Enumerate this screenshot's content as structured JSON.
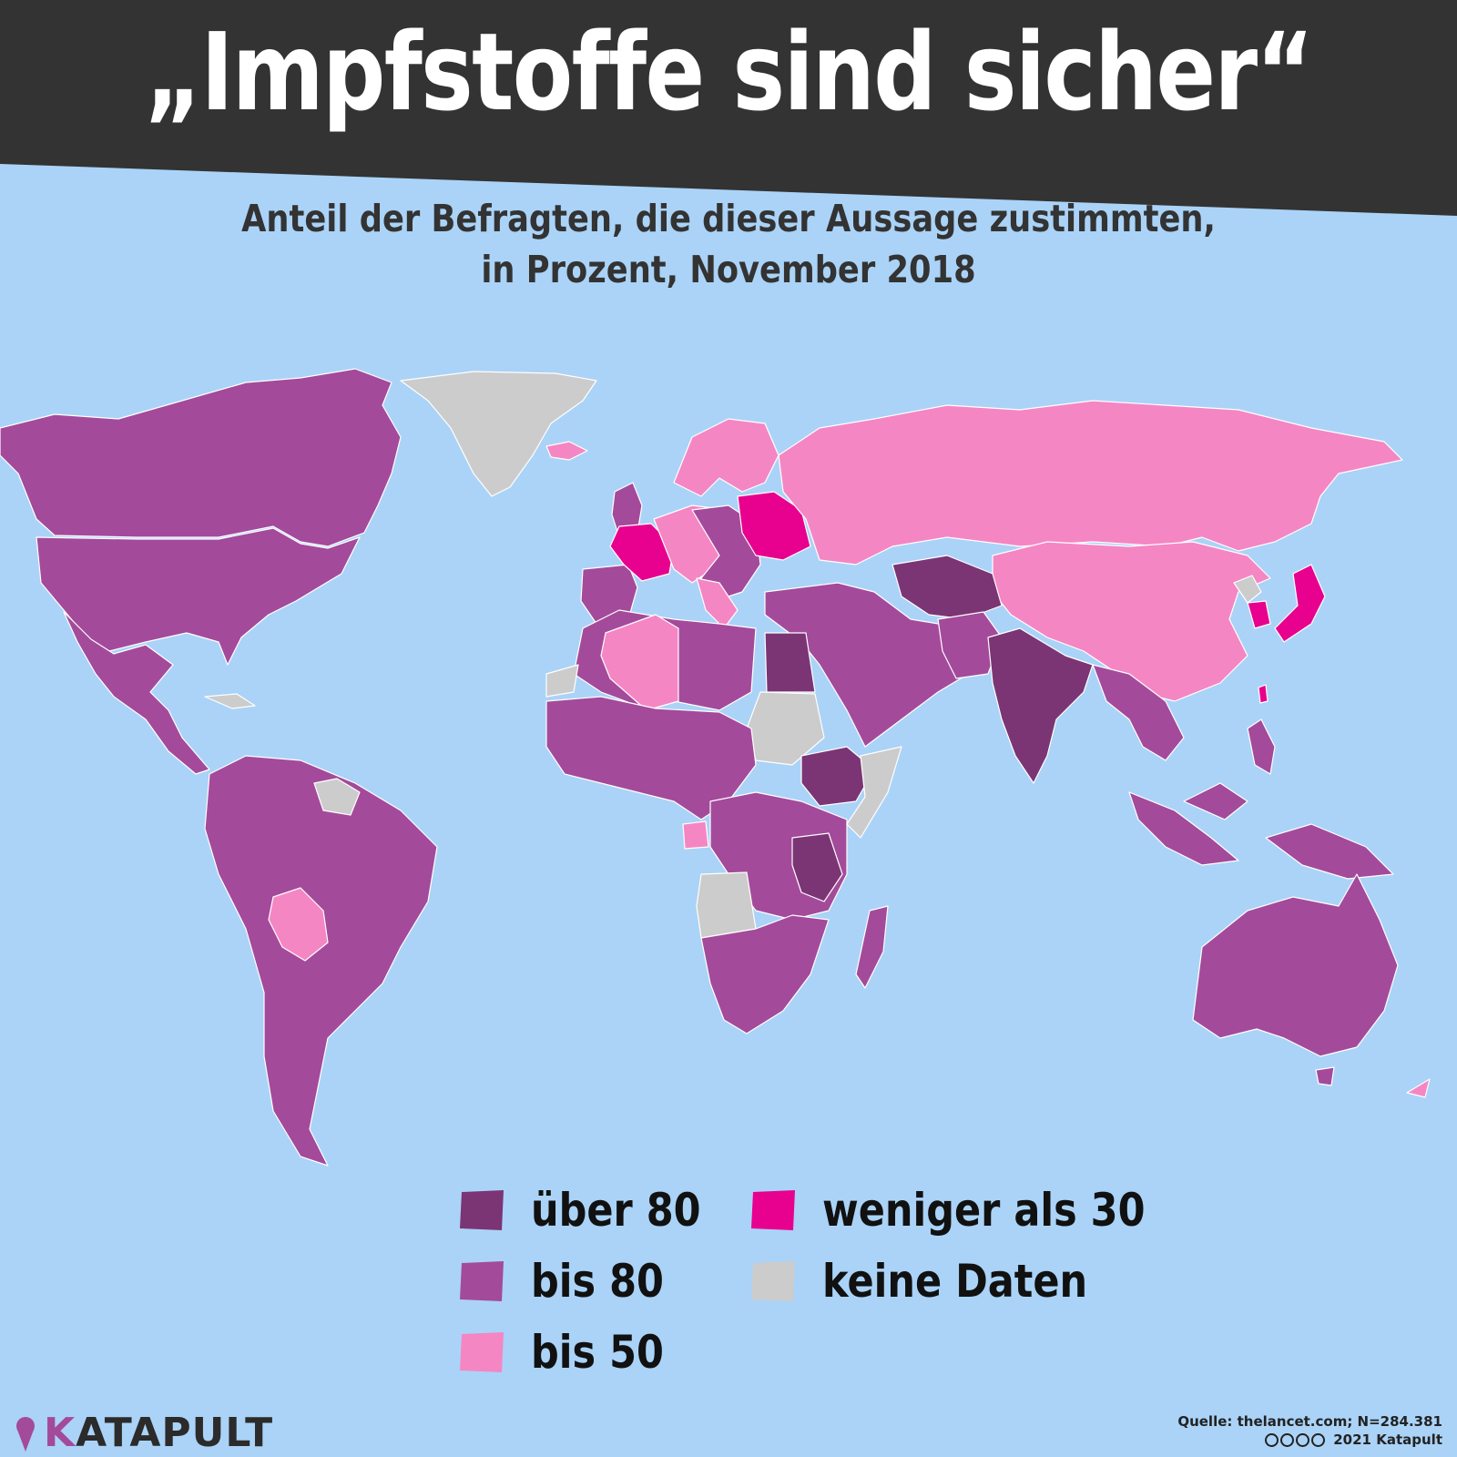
{
  "header": {
    "title": "„Impfstoffe sind sicher“",
    "subtitle_line1": "Anteil der Befragten, die dieser Aussage zustimmten,",
    "subtitle_line2": "in Prozent, November 2018"
  },
  "colors": {
    "ocean": "#aad3f7",
    "banner": "#333333",
    "ueber_80": "#7b3574",
    "bis_80": "#a44a9b",
    "bis_50": "#f586c4",
    "weniger_als_30": "#e8008f",
    "keine_daten": "#cccccc"
  },
  "legend": {
    "items": [
      {
        "label": "über 80",
        "color": "#7b3574"
      },
      {
        "label": "bis 80",
        "color": "#a44a9b"
      },
      {
        "label": "bis 50",
        "color": "#f586c4"
      },
      {
        "label": "weniger als 30",
        "color": "#e8008f"
      },
      {
        "label": "keine Daten",
        "color": "#cccccc"
      }
    ]
  },
  "footer": {
    "brand": "KATAPULT",
    "brand_first": "K",
    "brand_rest": "ATAPULT",
    "source": "Quelle: thelancet.com; N=284.381",
    "copyright": "2021 Katapult"
  }
}
